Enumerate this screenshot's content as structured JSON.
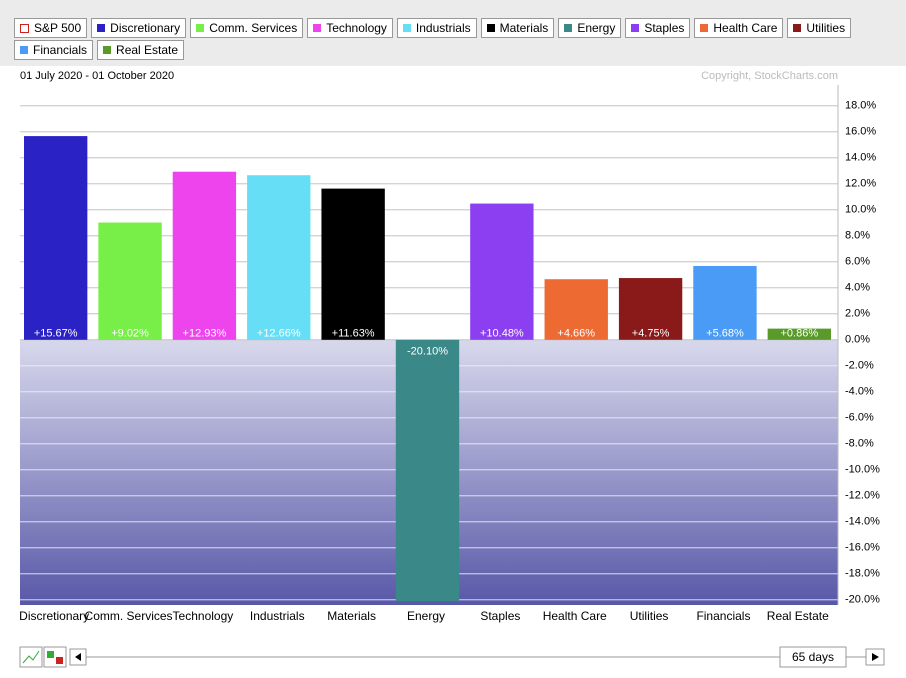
{
  "chart_data": {
    "type": "bar",
    "subtitle": "01 July 2020 - 01 October 2020",
    "annotation": "Copyright, StockCharts.com",
    "legend": [
      {
        "name": "S&P 500",
        "color": "#cc2222",
        "hollow": true
      },
      {
        "name": "Discretionary",
        "color": "#2b22c6"
      },
      {
        "name": "Comm. Services",
        "color": "#78ee48"
      },
      {
        "name": "Technology",
        "color": "#ee44ee"
      },
      {
        "name": "Industrials",
        "color": "#66def6"
      },
      {
        "name": "Materials",
        "color": "#000000"
      },
      {
        "name": "Energy",
        "color": "#3b8888"
      },
      {
        "name": "Staples",
        "color": "#8b3ff0"
      },
      {
        "name": "Health Care",
        "color": "#ee6a33"
      },
      {
        "name": "Utilities",
        "color": "#8a1a1a"
      },
      {
        "name": "Financials",
        "color": "#4a9bf6"
      },
      {
        "name": "Real Estate",
        "color": "#5a9a2a"
      }
    ],
    "categories": [
      "Discretionary",
      "Comm. Services",
      "Technology",
      "Industrials",
      "Materials",
      "Energy",
      "Staples",
      "Health Care",
      "Utilities",
      "Financials",
      "Real Estate"
    ],
    "values": [
      15.67,
      9.02,
      12.93,
      12.66,
      11.63,
      -20.1,
      10.48,
      4.66,
      4.75,
      5.68,
      0.86
    ],
    "value_labels": [
      "+15.67%",
      "+9.02%",
      "+12.93%",
      "+12.66%",
      "+11.63%",
      "-20.10%",
      "+10.48%",
      "+4.66%",
      "+4.75%",
      "+5.68%",
      "+0.86%"
    ],
    "colors": [
      "#2b22c6",
      "#78ee48",
      "#ee44ee",
      "#66def6",
      "#000000",
      "#3b8888",
      "#8b3ff0",
      "#ee6a33",
      "#8a1a1a",
      "#4a9bf6",
      "#5a9a2a"
    ],
    "ylim": [
      -20.4,
      19.6
    ],
    "yticks": [
      {
        "value": 18,
        "label": "18.0%"
      },
      {
        "value": 16,
        "label": "16.0%"
      },
      {
        "value": 14,
        "label": "14.0%"
      },
      {
        "value": 12,
        "label": "12.0%"
      },
      {
        "value": 10,
        "label": "10.0%"
      },
      {
        "value": 8,
        "label": "8.0%"
      },
      {
        "value": 6,
        "label": "6.0%"
      },
      {
        "value": 4,
        "label": "4.0%"
      },
      {
        "value": 2,
        "label": "2.0%"
      },
      {
        "value": 0,
        "label": "0.0%"
      },
      {
        "value": -2,
        "label": "-2.0%"
      },
      {
        "value": -4,
        "label": "-4.0%"
      },
      {
        "value": -6,
        "label": "-6.0%"
      },
      {
        "value": -8,
        "label": "-8.0%"
      },
      {
        "value": -10,
        "label": "-10.0%"
      },
      {
        "value": -12,
        "label": "-12.0%"
      },
      {
        "value": -14,
        "label": "-14.0%"
      },
      {
        "value": -16,
        "label": "-16.0%"
      },
      {
        "value": -18,
        "label": "-18.0%"
      },
      {
        "value": -20,
        "label": "-20.0%"
      }
    ],
    "grid": true
  },
  "period_label": "65 days"
}
